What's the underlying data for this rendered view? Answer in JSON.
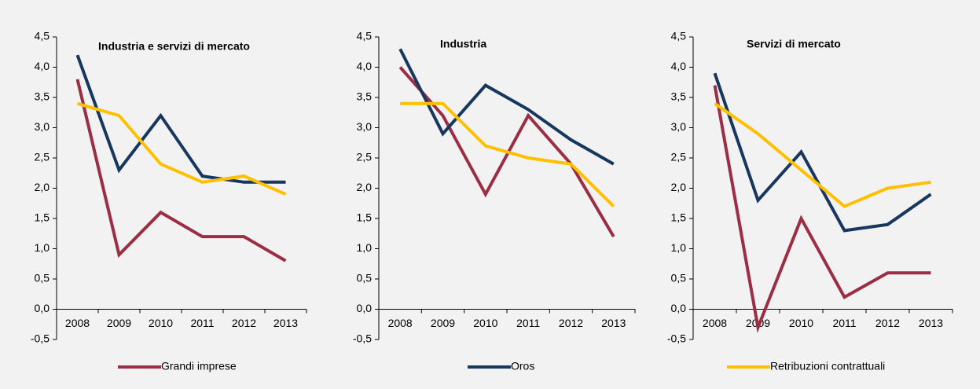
{
  "chart_data": [
    {
      "type": "line",
      "title": "Industria e servizi di mercato",
      "categories": [
        "2008",
        "2009",
        "2010",
        "2011",
        "2012",
        "2013"
      ],
      "series": [
        {
          "values": [
            3.8,
            0.9,
            1.6,
            1.2,
            1.2,
            0.8
          ]
        },
        {
          "values": [
            4.2,
            2.3,
            3.2,
            2.2,
            2.1,
            2.1
          ]
        },
        {
          "values": [
            3.4,
            3.2,
            2.4,
            2.1,
            2.2,
            1.9
          ]
        }
      ],
      "ylim": [
        -0.5,
        4.5
      ],
      "yticks": [
        {
          "value": -0.5,
          "label": "-0,5"
        },
        {
          "value": 0,
          "label": "0,0"
        },
        {
          "value": 0.5,
          "label": "0,5"
        },
        {
          "value": 1,
          "label": "1,0"
        },
        {
          "value": 1.5,
          "label": "1,5"
        },
        {
          "value": 2,
          "label": "2,0"
        },
        {
          "value": 2.5,
          "label": "2,5"
        },
        {
          "value": 3,
          "label": "3,0"
        },
        {
          "value": 3.5,
          "label": "3,5"
        },
        {
          "value": 4,
          "label": "4,0"
        },
        {
          "value": 4.5,
          "label": "4,5"
        }
      ]
    },
    {
      "type": "line",
      "title": "Industria",
      "categories": [
        "2008",
        "2009",
        "2010",
        "2011",
        "2012",
        "2013"
      ],
      "series": [
        {
          "values": [
            4.0,
            3.2,
            1.9,
            3.2,
            2.4,
            1.2
          ]
        },
        {
          "values": [
            4.3,
            2.9,
            3.7,
            3.3,
            2.8,
            2.4
          ]
        },
        {
          "values": [
            3.4,
            3.4,
            2.7,
            2.5,
            2.4,
            1.7
          ]
        }
      ],
      "ylim": [
        -0.5,
        4.5
      ],
      "yticks": [
        {
          "value": -0.5,
          "label": "-0,5"
        },
        {
          "value": 0,
          "label": "0,0"
        },
        {
          "value": 0.5,
          "label": "0,5"
        },
        {
          "value": 1,
          "label": "1,0"
        },
        {
          "value": 1.5,
          "label": "1,5"
        },
        {
          "value": 2,
          "label": "2,0"
        },
        {
          "value": 2.5,
          "label": "2,5"
        },
        {
          "value": 3,
          "label": "3,0"
        },
        {
          "value": 3.5,
          "label": "3,5"
        },
        {
          "value": 4,
          "label": "4,0"
        },
        {
          "value": 4.5,
          "label": "4,5"
        }
      ]
    },
    {
      "type": "line",
      "title": "Servizi di mercato",
      "categories": [
        "2008",
        "2009",
        "2010",
        "2011",
        "2012",
        "2013"
      ],
      "series": [
        {
          "values": [
            3.7,
            -0.3,
            1.5,
            0.2,
            0.6,
            0.6
          ]
        },
        {
          "values": [
            3.9,
            1.8,
            2.6,
            1.3,
            1.4,
            1.9
          ]
        },
        {
          "values": [
            3.4,
            2.9,
            2.3,
            1.7,
            2.0,
            2.1
          ]
        }
      ],
      "ylim": [
        -0.5,
        4.5
      ],
      "yticks": [
        {
          "value": -0.5,
          "label": "-0,5"
        },
        {
          "value": 0,
          "label": "0,0"
        },
        {
          "value": 0.5,
          "label": "0,5"
        },
        {
          "value": 1,
          "label": "1,0"
        },
        {
          "value": 1.5,
          "label": "1,5"
        },
        {
          "value": 2,
          "label": "2,0"
        },
        {
          "value": 2.5,
          "label": "2,5"
        },
        {
          "value": 3,
          "label": "3,0"
        },
        {
          "value": 3.5,
          "label": "3,5"
        },
        {
          "value": 4,
          "label": "4,0"
        },
        {
          "value": 4.5,
          "label": "4,5"
        }
      ]
    }
  ],
  "legend": [
    {
      "name": "Grandi imprese",
      "color": "#9b2d45"
    },
    {
      "name": "Oros",
      "color": "#17375e"
    },
    {
      "name": "Retribuzioni contrattuali",
      "color": "#ffc000"
    }
  ]
}
